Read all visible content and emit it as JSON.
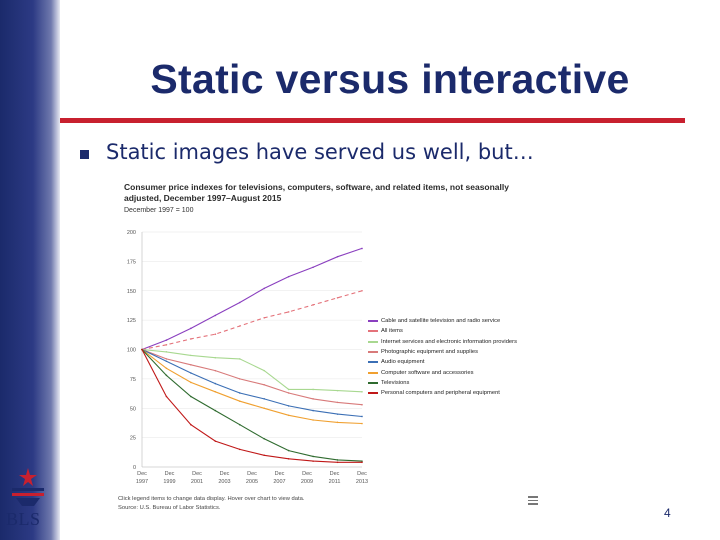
{
  "slide": {
    "title": "Static versus interactive",
    "bullet": "Static images have served us well, but…",
    "page_number": "4",
    "logo_text": "BLS"
  },
  "colors": {
    "navy": "#1b2a6b",
    "accent_red": "#c8202f"
  },
  "chart_data": {
    "type": "line",
    "title": "Consumer price indexes for televisions, computers, software, and related items, not seasonally adjusted, December 1997–August 2015",
    "subtitle": "December 1997 = 100",
    "x": [
      "Dec 1997",
      "Dec 1999",
      "Dec 2001",
      "Dec 2003",
      "Dec 2005",
      "Dec 2007",
      "Dec 2009",
      "Dec 2011",
      "Dec 2013",
      "Aug 2015"
    ],
    "x_tick_labels": [
      {
        "month": "Dec",
        "year": "1997"
      },
      {
        "month": "Dec",
        "year": "1999"
      },
      {
        "month": "Dec",
        "year": "2001"
      },
      {
        "month": "Dec",
        "year": "2003"
      },
      {
        "month": "Dec",
        "year": "2005"
      },
      {
        "month": "Dec",
        "year": "2007"
      },
      {
        "month": "Dec",
        "year": "2009"
      },
      {
        "month": "Dec",
        "year": "2011"
      },
      {
        "month": "Dec",
        "year": "2013"
      }
    ],
    "y_ticks": [
      "200",
      "175",
      "150",
      "125",
      "100",
      "75",
      "50",
      "25",
      "0"
    ],
    "ylim": [
      0,
      200
    ],
    "series": [
      {
        "name": "Cable and satellite television and radio service",
        "color": "#8a3fbf",
        "dash": "",
        "values": [
          100,
          108,
          118,
          129,
          140,
          152,
          162,
          170,
          179,
          186
        ]
      },
      {
        "name": "All items",
        "color": "#e4727a",
        "dash": "4,3",
        "values": [
          100,
          104,
          109,
          113,
          120,
          127,
          132,
          138,
          144,
          150
        ]
      },
      {
        "name": "Internet services and electronic information providers",
        "color": "#a8d890",
        "dash": "",
        "values": [
          100,
          98,
          95,
          93,
          92,
          82,
          66,
          66,
          65,
          64
        ]
      },
      {
        "name": "Photographic equipment and supplies",
        "color": "#d87a7a",
        "dash": "",
        "values": [
          100,
          92,
          87,
          82,
          75,
          70,
          63,
          58,
          55,
          53
        ]
      },
      {
        "name": "Audio equipment",
        "color": "#3b6fb5",
        "dash": "",
        "values": [
          100,
          90,
          80,
          71,
          63,
          58,
          52,
          48,
          45,
          43
        ]
      },
      {
        "name": "Computer software and accessories",
        "color": "#f0a030",
        "dash": "",
        "values": [
          100,
          84,
          72,
          64,
          56,
          50,
          44,
          40,
          38,
          37
        ]
      },
      {
        "name": "Televisions",
        "color": "#2f6b2f",
        "dash": "",
        "values": [
          100,
          78,
          60,
          48,
          36,
          24,
          14,
          9,
          6,
          5
        ]
      },
      {
        "name": "Personal computers and peripheral equipment",
        "color": "#c01818",
        "dash": "",
        "values": [
          100,
          60,
          36,
          22,
          15,
          10,
          7,
          5,
          4,
          4
        ]
      }
    ],
    "hint": "Click legend items to change data display. Hover over chart to view data.",
    "source": "Source: U.S. Bureau of Labor Statistics."
  }
}
